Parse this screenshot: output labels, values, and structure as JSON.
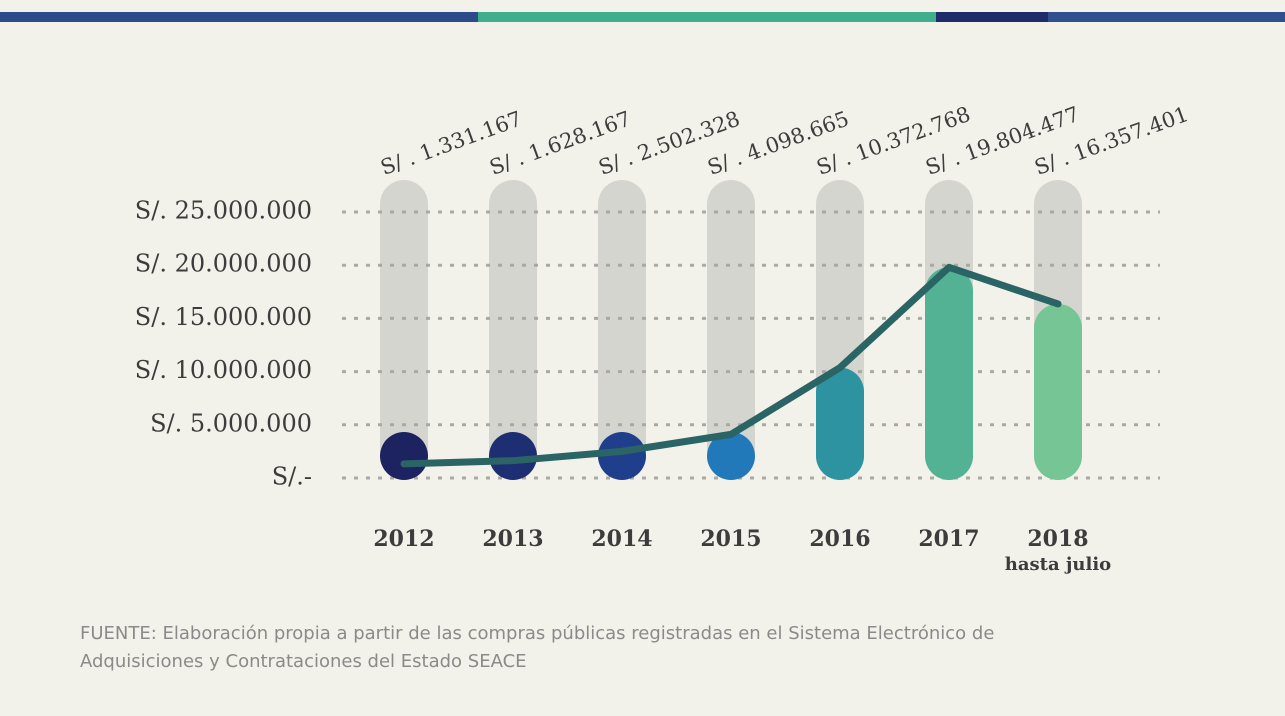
{
  "chart_data": {
    "type": "bar_line",
    "categories": [
      "2012",
      "2013",
      "2014",
      "2015",
      "2016",
      "2017",
      "2018"
    ],
    "annotations": [
      "hasta julio"
    ],
    "values": [
      1331167,
      1628167,
      2502328,
      4098665,
      10372768,
      19804477,
      16357401
    ],
    "value_labels": [
      "S/ . 1.331.167",
      "S/ . 1.628.167",
      "S/ . 2.502.328",
      "S/ . 4.098.665",
      "S/ . 10.372.768",
      "S/ . 19.804.477",
      "S/ . 16.357.401"
    ],
    "colors": [
      "#1d2260",
      "#1e2e72",
      "#1f3f8c",
      "#2279b9",
      "#2e93a1",
      "#52b293",
      "#76c695"
    ],
    "line_color": "#2a6464",
    "ylim": [
      0,
      25000000
    ],
    "yticks": [
      {
        "value": 0,
        "label": "S/.-"
      },
      {
        "value": 5000000,
        "label": "S/. 5.000.000"
      },
      {
        "value": 10000000,
        "label": "S/. 10.000.000"
      },
      {
        "value": 15000000,
        "label": "S/. 15.000.000"
      },
      {
        "value": 20000000,
        "label": "S/. 20.000.000"
      },
      {
        "value": 25000000,
        "label": "S/. 25.000.000"
      }
    ],
    "grid": true,
    "source": [
      "FUENTE: Elaboración propia a partir de las compras públicas registradas en el Sistema Electrónico de",
      "Adquisiciones y Contrataciones del Estado SEACE"
    ]
  }
}
